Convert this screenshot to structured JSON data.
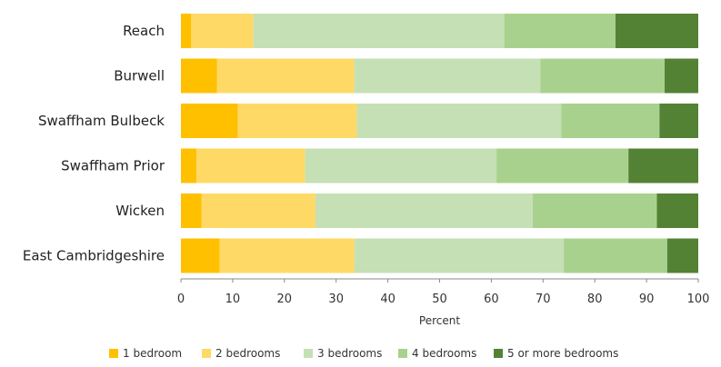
{
  "chart_data": {
    "type": "bar",
    "orientation": "horizontal",
    "stacked": true,
    "categories": [
      "Reach",
      "Burwell",
      "Swaffham Bulbeck",
      "Swaffham Prior",
      "Wicken",
      "East Cambridgeshire"
    ],
    "series": [
      {
        "name": "1 bedroom",
        "color": "#FFC000",
        "values": [
          2,
          7,
          11,
          3,
          4,
          7.5
        ]
      },
      {
        "name": "2 bedrooms",
        "color": "#FFD966",
        "values": [
          12,
          26.5,
          23,
          21,
          22,
          26
        ]
      },
      {
        "name": "3 bedrooms",
        "color": "#C5E0B4",
        "values": [
          48.5,
          36,
          39.5,
          37,
          42,
          40.5
        ]
      },
      {
        "name": "4 bedrooms",
        "color": "#A9D18E",
        "values": [
          21.5,
          24,
          19,
          25.5,
          24,
          20
        ]
      },
      {
        "name": "5 or more bedrooms",
        "color": "#548235",
        "values": [
          16,
          6.5,
          7.5,
          13.5,
          8,
          6
        ]
      }
    ],
    "xlabel": "Percent",
    "xlim": [
      0,
      100
    ],
    "xticks": [
      0,
      10,
      20,
      30,
      40,
      50,
      60,
      70,
      80,
      90,
      100
    ],
    "grid": false,
    "legend_position": "bottom"
  }
}
